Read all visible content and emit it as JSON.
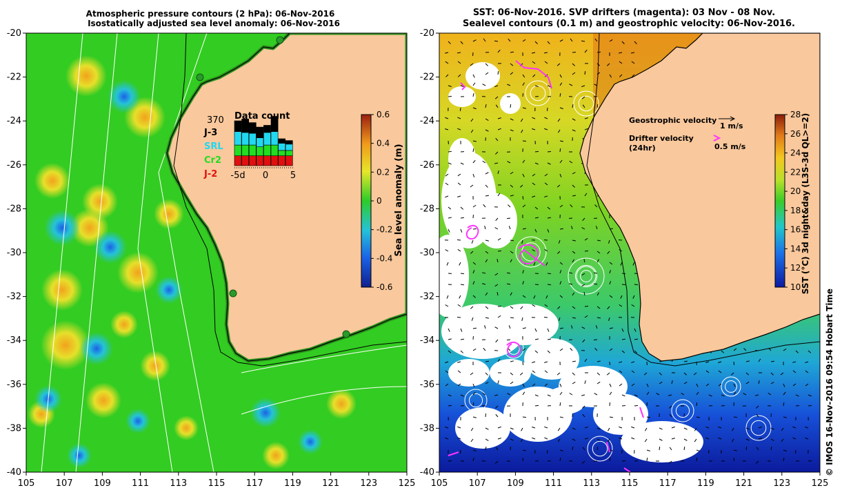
{
  "left_panel": {
    "title_line1": "Atmospheric pressure contours (2 hPa): 06-Nov-2016",
    "title_line2": "Isostatically adjusted sea level anomaly: 06-Nov-2016",
    "y_ticks": [
      "-20",
      "-22",
      "-24",
      "-26",
      "-28",
      "-30",
      "-32",
      "-34",
      "-36",
      "-38",
      "-40"
    ],
    "x_ticks": [
      "105",
      "107",
      "109",
      "111",
      "113",
      "115",
      "117",
      "119",
      "121",
      "123",
      "125"
    ],
    "legend_total": "370",
    "legend_items": [
      {
        "label": "J-3",
        "color": "#000000"
      },
      {
        "label": "SRL",
        "color": "#22d8f0"
      },
      {
        "label": "Cr2",
        "color": "#22dd22"
      },
      {
        "label": "J-2",
        "color": "#e01010"
      }
    ],
    "histogram": {
      "title": "Data count",
      "ticks": [
        "-5d",
        "0",
        "5"
      ],
      "bars": [
        {
          "J-2": 0.11,
          "Cr2": 0.12,
          "SRL": 0.15,
          "J-3": 0.12
        },
        {
          "J-2": 0.11,
          "Cr2": 0.12,
          "SRL": 0.14,
          "J-3": 0.15
        },
        {
          "J-2": 0.11,
          "Cr2": 0.12,
          "SRL": 0.13,
          "J-3": 0.12
        },
        {
          "J-2": 0.11,
          "Cr2": 0.1,
          "SRL": 0.1,
          "J-3": 0.12
        },
        {
          "J-2": 0.11,
          "Cr2": 0.12,
          "SRL": 0.14,
          "J-3": 0.08
        },
        {
          "J-2": 0.11,
          "Cr2": 0.12,
          "SRL": 0.15,
          "J-3": 0.17
        },
        {
          "J-2": 0.11,
          "Cr2": 0.06,
          "SRL": 0.08,
          "J-3": 0.05
        },
        {
          "J-2": 0.11,
          "Cr2": 0.06,
          "SRL": 0.07,
          "J-3": 0.04
        }
      ]
    },
    "colorbar": {
      "label": "Sea level anomaly (m)",
      "ticks": [
        "0.6",
        "0.4",
        "0.2",
        "0",
        "-0.2",
        "-0.4",
        "-0.6"
      ]
    }
  },
  "right_panel": {
    "title_line1": "SST: 06-Nov-2016. SVP drifters (magenta): 03 Nov - 08 Nov.",
    "title_line2": "Sealevel contours (0.1 m) and geostrophic velocity: 06-Nov-2016.",
    "y_ticks": [
      "-20",
      "-22",
      "-24",
      "-26",
      "-28",
      "-30",
      "-32",
      "-34",
      "-36",
      "-38",
      "-40"
    ],
    "x_ticks": [
      "105",
      "107",
      "109",
      "111",
      "113",
      "115",
      "117",
      "119",
      "121",
      "123",
      "125"
    ],
    "geo_label": "Geostrophic velocity",
    "geo_scale": "1 m/s",
    "drifter_label": "Drifter velocity",
    "drifter_label2": "(24hr)",
    "drifter_scale": "0.5 m/s",
    "drifter_color": "#ff33ff",
    "colorbar": {
      "label": "SST (°C) 3d night&day (L3S-3d QL>=2)",
      "ticks": [
        "28",
        "26",
        "24",
        "22",
        "20",
        "18",
        "16",
        "14",
        "12",
        "10"
      ]
    }
  },
  "credit": "© IMOS 16-Nov-2016 09:54 Hobart Time",
  "colors": {
    "land": "#f9c89c",
    "coast": "#000000",
    "ocean_green": "#33cc22"
  }
}
